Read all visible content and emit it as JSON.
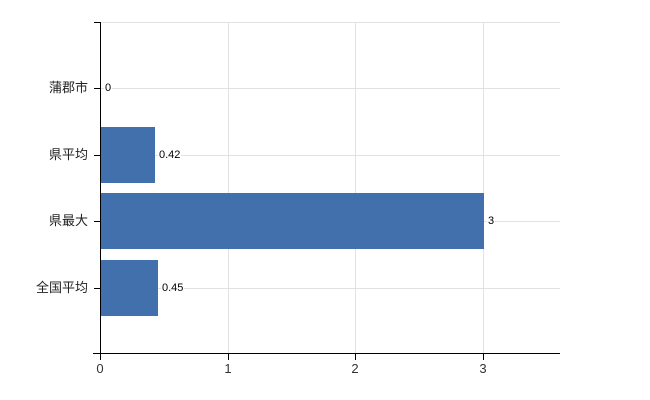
{
  "chart_data": {
    "type": "bar",
    "orientation": "horizontal",
    "title": "",
    "categories": [
      "蒲郡市",
      "県平均",
      "県最大",
      "全国平均"
    ],
    "values": [
      0,
      0.42,
      3,
      0.45
    ],
    "value_labels": [
      "0",
      "0.42",
      "3",
      "0.45"
    ],
    "x_ticks": [
      "0",
      "1",
      "2",
      "3"
    ],
    "x_tick_values": [
      0,
      1,
      2,
      3
    ],
    "xlim": [
      0,
      3.6
    ],
    "xlabel": "",
    "ylabel": "",
    "grid": true,
    "legend_position": "none",
    "bar_color": "#4170ad",
    "axis_color": "#000000",
    "gridline_color": "#e2e2e2",
    "category_label_color": "#222222",
    "value_label_color": "#000000",
    "tick_label_color": "#333333"
  }
}
